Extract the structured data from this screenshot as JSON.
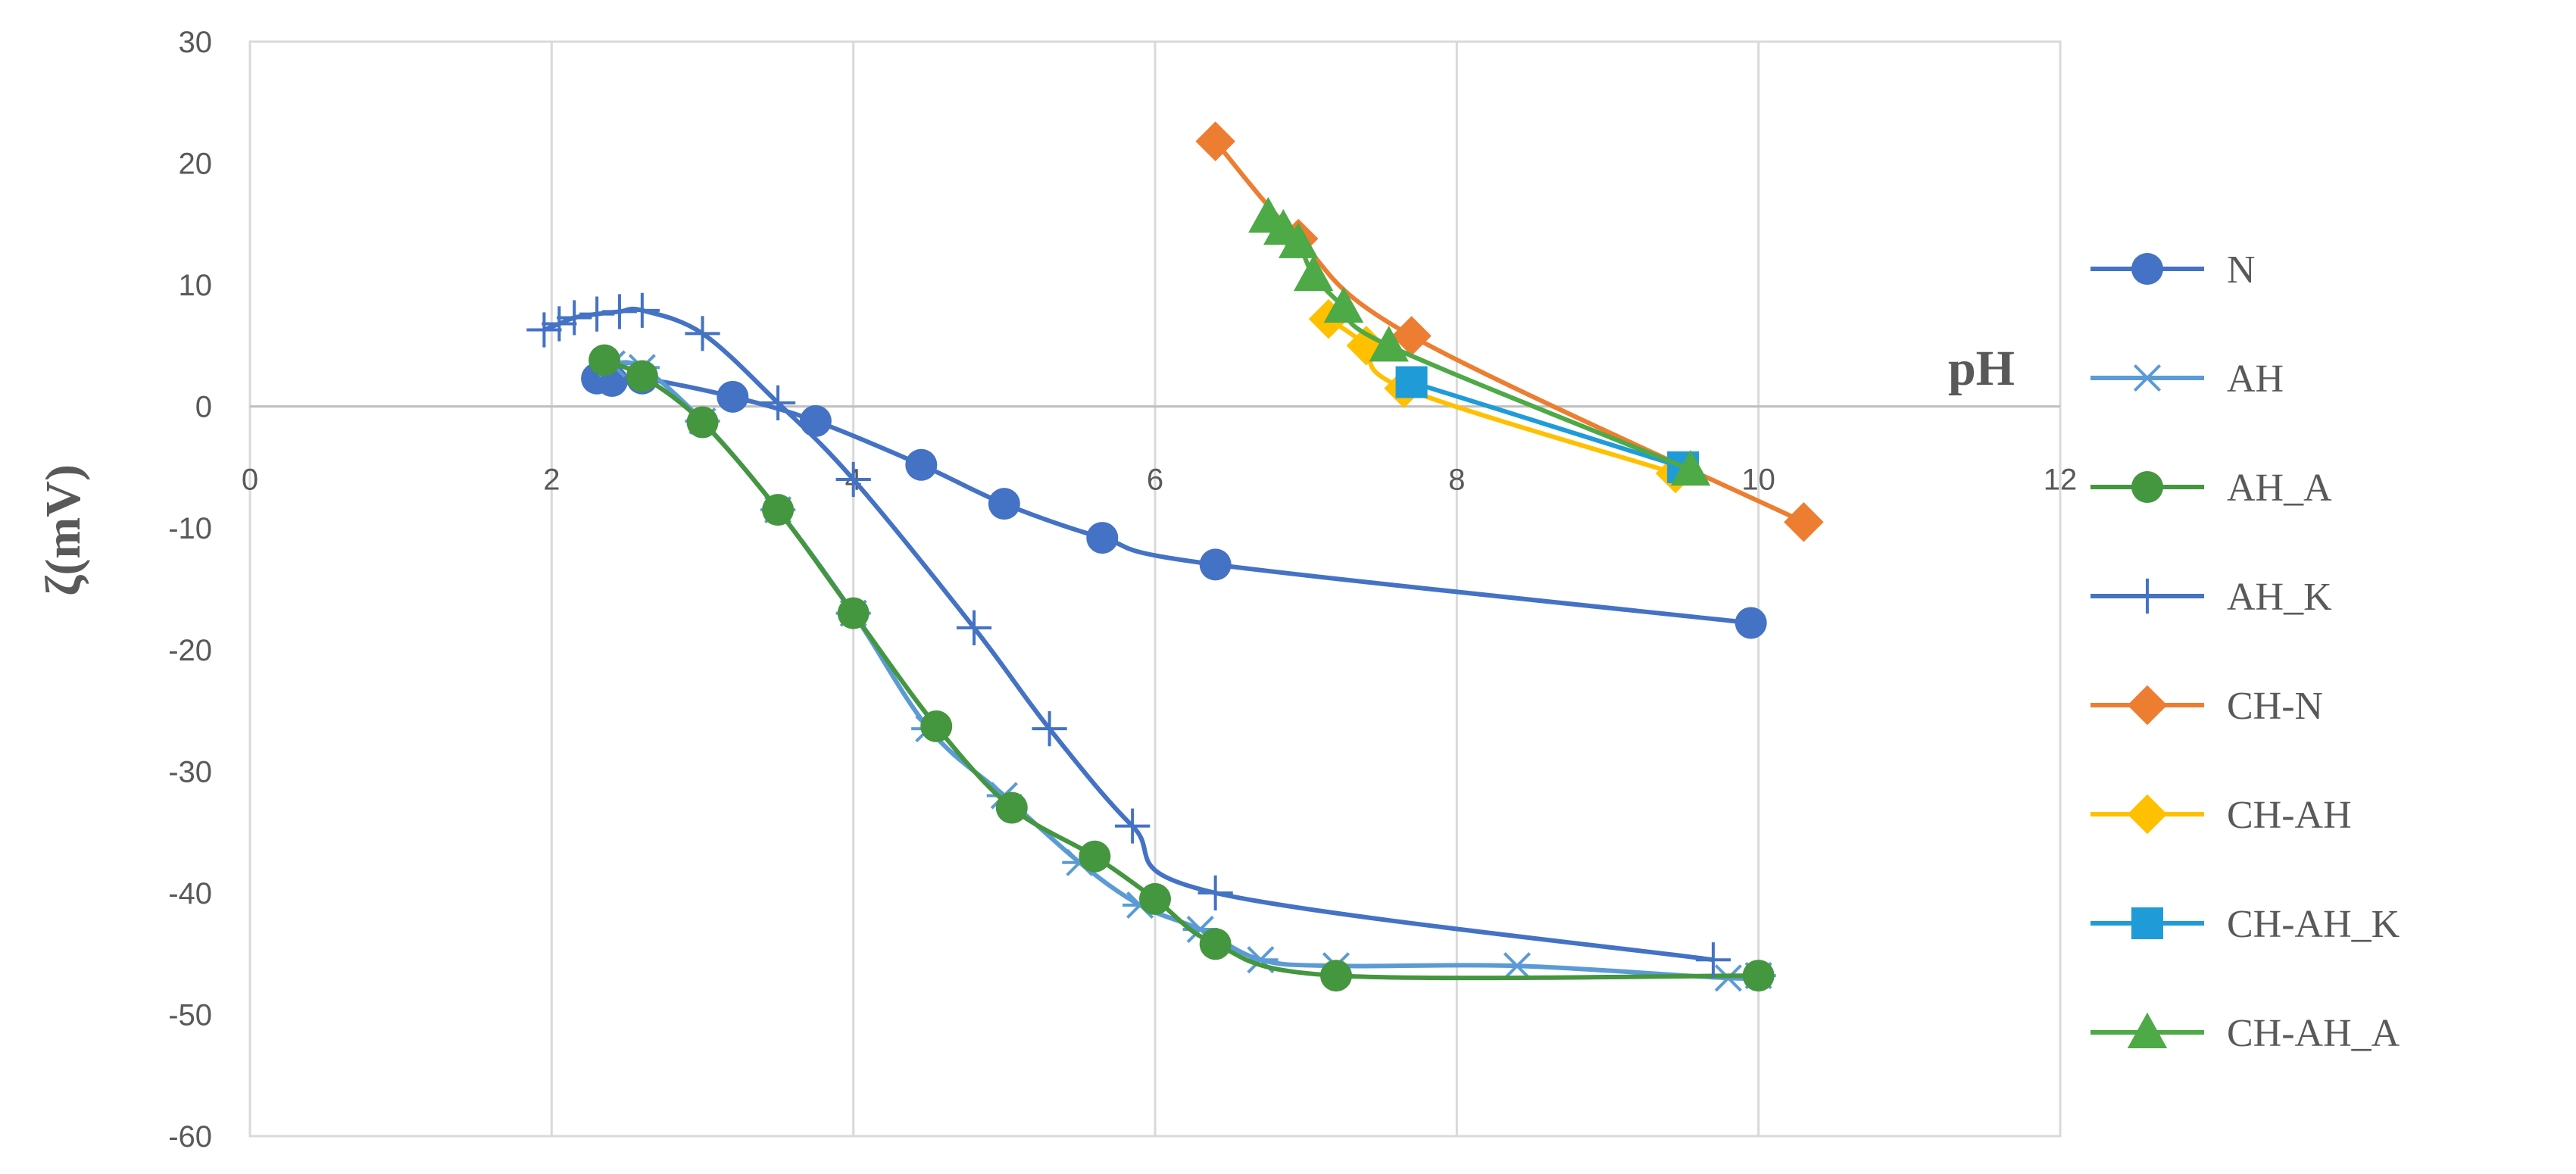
{
  "chart_data": {
    "type": "line",
    "xlabel": "pH",
    "ylabel": "ζ(mV)",
    "xlim": [
      0,
      12
    ],
    "ylim": [
      -60,
      30
    ],
    "x_ticks": [
      0,
      2,
      4,
      6,
      8,
      10,
      12
    ],
    "y_ticks": [
      30,
      20,
      10,
      0,
      -10,
      -20,
      -30,
      -40,
      -50,
      -60
    ],
    "grid": "vertical",
    "legend_position": "right",
    "series": [
      {
        "name": "N",
        "color": "#4472C4",
        "marker": "circle",
        "points": [
          [
            2.3,
            2.3
          ],
          [
            2.4,
            2.1
          ],
          [
            2.6,
            2.3
          ],
          [
            3.2,
            0.8
          ],
          [
            3.75,
            -1.2
          ],
          [
            4.45,
            -4.8
          ],
          [
            5.0,
            -8.0
          ],
          [
            5.65,
            -10.8
          ],
          [
            6.4,
            -13.0
          ],
          [
            9.95,
            -17.8
          ]
        ]
      },
      {
        "name": "AH",
        "color": "#5B9BD5",
        "marker": "asterisk",
        "points": [
          [
            2.4,
            3.5
          ],
          [
            2.6,
            3.2
          ],
          [
            3.0,
            -1.2
          ],
          [
            3.5,
            -8.5
          ],
          [
            4.0,
            -17.0
          ],
          [
            4.5,
            -26.5
          ],
          [
            5.0,
            -32.0
          ],
          [
            5.5,
            -37.5
          ],
          [
            5.9,
            -41.0
          ],
          [
            6.3,
            -43.0
          ],
          [
            6.7,
            -45.5
          ],
          [
            7.2,
            -46.0
          ],
          [
            8.4,
            -46.0
          ],
          [
            9.8,
            -47.0
          ],
          [
            10.0,
            -46.8
          ]
        ]
      },
      {
        "name": "AH_A",
        "color": "#44963F",
        "marker": "circle",
        "points": [
          [
            2.35,
            3.8
          ],
          [
            2.6,
            2.5
          ],
          [
            3.0,
            -1.3
          ],
          [
            3.5,
            -8.5
          ],
          [
            4.0,
            -17.0
          ],
          [
            4.55,
            -26.3
          ],
          [
            5.05,
            -33.0
          ],
          [
            5.6,
            -37.0
          ],
          [
            6.0,
            -40.5
          ],
          [
            6.4,
            -44.2
          ],
          [
            7.2,
            -46.8
          ],
          [
            10.0,
            -46.8
          ]
        ]
      },
      {
        "name": "AH_K",
        "color": "#4472C4",
        "marker": "plus",
        "points": [
          [
            1.95,
            6.3
          ],
          [
            2.05,
            6.8
          ],
          [
            2.15,
            7.3
          ],
          [
            2.3,
            7.6
          ],
          [
            2.45,
            7.8
          ],
          [
            2.6,
            7.9
          ],
          [
            3.0,
            6.0
          ],
          [
            3.5,
            0.3
          ],
          [
            4.0,
            -6.0
          ],
          [
            4.8,
            -18.2
          ],
          [
            5.3,
            -26.5
          ],
          [
            5.85,
            -34.5
          ],
          [
            6.4,
            -40.0
          ],
          [
            9.7,
            -45.5
          ]
        ]
      },
      {
        "name": "CH-N",
        "color": "#ED7D31",
        "marker": "diamond",
        "points": [
          [
            6.4,
            21.8
          ],
          [
            6.95,
            13.8
          ],
          [
            7.7,
            5.8
          ],
          [
            10.3,
            -9.5
          ]
        ]
      },
      {
        "name": "CH-AH",
        "color": "#FFC000",
        "marker": "diamond",
        "points": [
          [
            7.15,
            7.2
          ],
          [
            7.4,
            5.0
          ],
          [
            7.65,
            1.5
          ],
          [
            9.45,
            -5.5
          ]
        ]
      },
      {
        "name": "CH-AH_K",
        "color": "#1F9CD8",
        "marker": "square",
        "points": [
          [
            7.7,
            2.0
          ],
          [
            9.5,
            -5.0
          ]
        ]
      },
      {
        "name": "CH-AH_A",
        "color": "#4EA947",
        "marker": "triangle",
        "points": [
          [
            6.75,
            15.6
          ],
          [
            6.85,
            14.6
          ],
          [
            6.95,
            13.5
          ],
          [
            7.05,
            10.8
          ],
          [
            7.25,
            8.2
          ],
          [
            7.55,
            5.0
          ],
          [
            9.55,
            -5.2
          ]
        ]
      }
    ]
  }
}
